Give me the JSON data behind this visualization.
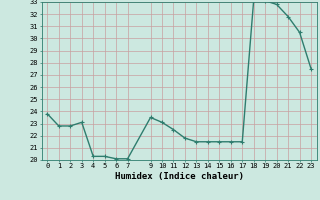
{
  "x": [
    0,
    1,
    2,
    3,
    4,
    5,
    6,
    7,
    9,
    10,
    11,
    12,
    13,
    14,
    15,
    16,
    17,
    18,
    19,
    20,
    21,
    22,
    23
  ],
  "y": [
    23.8,
    22.8,
    22.8,
    23.1,
    20.3,
    20.3,
    20.1,
    20.1,
    23.5,
    23.1,
    22.5,
    21.8,
    21.5,
    21.5,
    21.5,
    21.5,
    21.5,
    33.2,
    33.1,
    32.8,
    31.8,
    30.5,
    27.5
  ],
  "line_color": "#2e7d6e",
  "marker": "+",
  "marker_size": 3,
  "bg_color": "#cce8e0",
  "grid_color": "#c8a0a0",
  "xlabel": "Humidex (Indice chaleur)",
  "ylim": [
    20,
    33
  ],
  "xlim": [
    -0.5,
    23.5
  ],
  "yticks": [
    20,
    21,
    22,
    23,
    24,
    25,
    26,
    27,
    28,
    29,
    30,
    31,
    32,
    33
  ],
  "xticks": [
    0,
    1,
    2,
    3,
    4,
    5,
    6,
    7,
    9,
    10,
    11,
    12,
    13,
    14,
    15,
    16,
    17,
    18,
    19,
    20,
    21,
    22,
    23
  ],
  "tick_fontsize": 5,
  "label_fontsize": 6.5,
  "linewidth": 1.0
}
